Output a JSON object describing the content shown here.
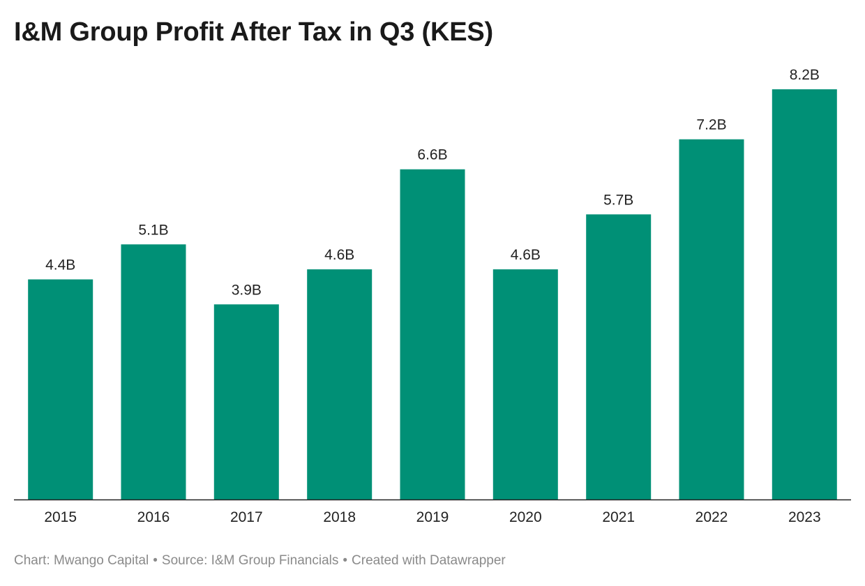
{
  "chart_data": {
    "type": "bar",
    "title": "I&M Group Profit After Tax in Q3 (KES)",
    "categories": [
      "2015",
      "2016",
      "2017",
      "2018",
      "2019",
      "2020",
      "2021",
      "2022",
      "2023"
    ],
    "values": [
      4.4,
      5.1,
      3.9,
      4.6,
      6.6,
      4.6,
      5.7,
      7.2,
      8.2
    ],
    "value_labels": [
      "4.4B",
      "5.1B",
      "3.9B",
      "4.6B",
      "6.6B",
      "4.6B",
      "5.7B",
      "7.2B",
      "8.2B"
    ],
    "unit": "B",
    "xlabel": "",
    "ylabel": "",
    "ylim": [
      0,
      8.2
    ],
    "grid": false,
    "legend": "none",
    "color": "#009076",
    "baseline_color": "#222222"
  },
  "footer": {
    "chart_credit": "Chart: Mwango Capital",
    "source": "Source: I&M Group Financials",
    "created_with": "Created with Datawrapper",
    "separator": "•"
  }
}
